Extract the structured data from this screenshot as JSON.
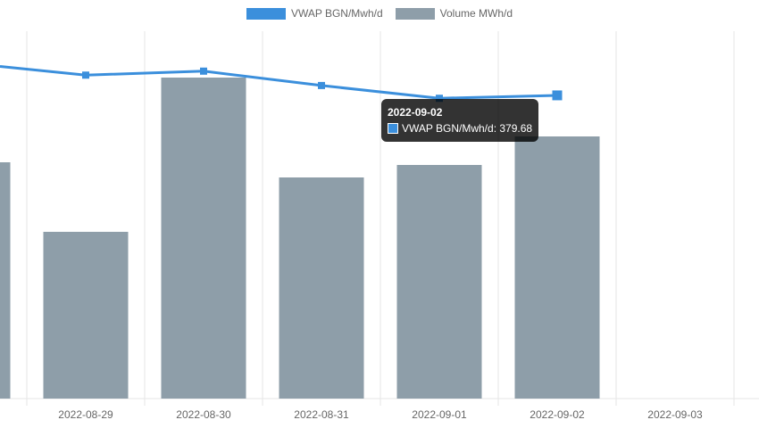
{
  "chart_data": {
    "type": "bar",
    "categories": [
      "",
      "2022-08-29",
      "2022-08-30",
      "2022-08-31",
      "2022-09-01",
      "2022-09-02",
      "2022-09-03"
    ],
    "series": [
      {
        "name": "VWAP BGN/Mwh/d",
        "type": "line",
        "color": "#3b8fdc",
        "values": [
          420,
          405,
          410,
          392,
          376,
          379.68,
          null
        ],
        "ylim": [
          0,
          460
        ]
      },
      {
        "name": "Volume MWh/d",
        "type": "bar",
        "color": "#8e9ea9",
        "values": [
          265,
          187,
          360,
          248,
          262,
          294,
          null
        ],
        "ylim": [
          0,
          412
        ]
      }
    ],
    "grid": true,
    "legend_position": "top"
  },
  "tooltip": {
    "title": "2022-09-02",
    "label": "VWAP BGN/Mwh/d: 379.68",
    "color": "#3b8fdc"
  }
}
